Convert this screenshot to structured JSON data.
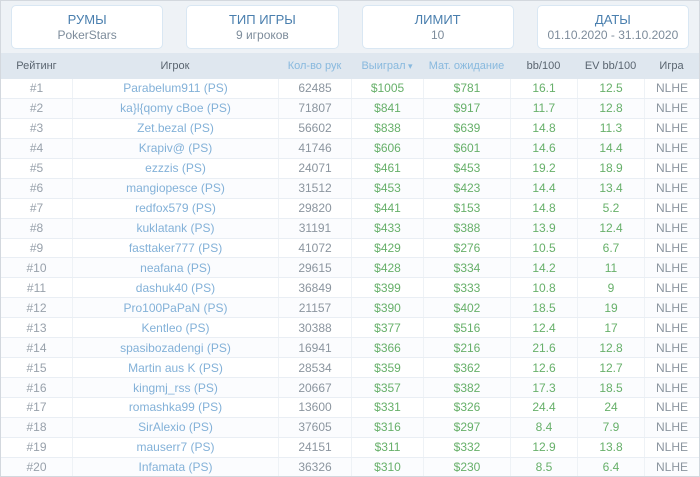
{
  "filters": [
    {
      "label": "РУМЫ",
      "value": "PokerStars"
    },
    {
      "label": "ТИП ИГРЫ",
      "value": "9 игроков"
    },
    {
      "label": "ЛИМИТ",
      "value": "10"
    },
    {
      "label": "ДАТЫ",
      "value": "01.10.2020 - 31.10.2020"
    }
  ],
  "table": {
    "sort_icon": "▾",
    "columns": [
      {
        "label": "Рейтинг",
        "sortable": false,
        "sorted": false
      },
      {
        "label": "Игрок",
        "sortable": false,
        "sorted": false
      },
      {
        "label": "Кол-во рук",
        "sortable": true,
        "sorted": false
      },
      {
        "label": "Выиграл",
        "sortable": true,
        "sorted": true
      },
      {
        "label": "Мат. ожидание",
        "sortable": true,
        "sorted": false
      },
      {
        "label": "bb/100",
        "sortable": false,
        "sorted": false
      },
      {
        "label": "EV bb/100",
        "sortable": false,
        "sorted": false
      },
      {
        "label": "Игра",
        "sortable": false,
        "sorted": false
      }
    ],
    "rows": [
      {
        "rank": "#1",
        "player": "Parabelum911 (PS)",
        "hands": "62485",
        "won": "$1005",
        "expectation": "$781",
        "bb100": "16.1",
        "ev_bb100": "12.5",
        "game": "NLHE"
      },
      {
        "rank": "#2",
        "player": "ka}l{qomy cBoe (PS)",
        "hands": "71807",
        "won": "$841",
        "expectation": "$917",
        "bb100": "11.7",
        "ev_bb100": "12.8",
        "game": "NLHE"
      },
      {
        "rank": "#3",
        "player": "Zet.bezal (PS)",
        "hands": "56602",
        "won": "$838",
        "expectation": "$639",
        "bb100": "14.8",
        "ev_bb100": "11.3",
        "game": "NLHE"
      },
      {
        "rank": "#4",
        "player": "Krapiv@ (PS)",
        "hands": "41746",
        "won": "$606",
        "expectation": "$601",
        "bb100": "14.6",
        "ev_bb100": "14.4",
        "game": "NLHE"
      },
      {
        "rank": "#5",
        "player": "ezzzis (PS)",
        "hands": "24071",
        "won": "$461",
        "expectation": "$453",
        "bb100": "19.2",
        "ev_bb100": "18.9",
        "game": "NLHE"
      },
      {
        "rank": "#6",
        "player": "mangiopesce (PS)",
        "hands": "31512",
        "won": "$453",
        "expectation": "$423",
        "bb100": "14.4",
        "ev_bb100": "13.4",
        "game": "NLHE"
      },
      {
        "rank": "#7",
        "player": "redfox579 (PS)",
        "hands": "29820",
        "won": "$441",
        "expectation": "$153",
        "bb100": "14.8",
        "ev_bb100": "5.2",
        "game": "NLHE"
      },
      {
        "rank": "#8",
        "player": "kuklatank (PS)",
        "hands": "31191",
        "won": "$433",
        "expectation": "$388",
        "bb100": "13.9",
        "ev_bb100": "12.4",
        "game": "NLHE"
      },
      {
        "rank": "#9",
        "player": "fasttaker777 (PS)",
        "hands": "41072",
        "won": "$429",
        "expectation": "$276",
        "bb100": "10.5",
        "ev_bb100": "6.7",
        "game": "NLHE"
      },
      {
        "rank": "#10",
        "player": "neafana (PS)",
        "hands": "29615",
        "won": "$428",
        "expectation": "$334",
        "bb100": "14.2",
        "ev_bb100": "11",
        "game": "NLHE"
      },
      {
        "rank": "#11",
        "player": "dashuk40 (PS)",
        "hands": "36849",
        "won": "$399",
        "expectation": "$333",
        "bb100": "10.8",
        "ev_bb100": "9",
        "game": "NLHE"
      },
      {
        "rank": "#12",
        "player": "Pro100PaPaN (PS)",
        "hands": "21157",
        "won": "$390",
        "expectation": "$402",
        "bb100": "18.5",
        "ev_bb100": "19",
        "game": "NLHE"
      },
      {
        "rank": "#13",
        "player": "Kentleo (PS)",
        "hands": "30388",
        "won": "$377",
        "expectation": "$516",
        "bb100": "12.4",
        "ev_bb100": "17",
        "game": "NLHE"
      },
      {
        "rank": "#14",
        "player": "spasibozadengi (PS)",
        "hands": "16941",
        "won": "$366",
        "expectation": "$216",
        "bb100": "21.6",
        "ev_bb100": "12.8",
        "game": "NLHE"
      },
      {
        "rank": "#15",
        "player": "Martin aus K (PS)",
        "hands": "28534",
        "won": "$359",
        "expectation": "$362",
        "bb100": "12.6",
        "ev_bb100": "12.7",
        "game": "NLHE"
      },
      {
        "rank": "#16",
        "player": "kingmj_rss (PS)",
        "hands": "20667",
        "won": "$357",
        "expectation": "$382",
        "bb100": "17.3",
        "ev_bb100": "18.5",
        "game": "NLHE"
      },
      {
        "rank": "#17",
        "player": "romashka99 (PS)",
        "hands": "13600",
        "won": "$331",
        "expectation": "$326",
        "bb100": "24.4",
        "ev_bb100": "24",
        "game": "NLHE"
      },
      {
        "rank": "#18",
        "player": "SirAlexio (PS)",
        "hands": "37605",
        "won": "$316",
        "expectation": "$297",
        "bb100": "8.4",
        "ev_bb100": "7.9",
        "game": "NLHE"
      },
      {
        "rank": "#19",
        "player": "mauserr7 (PS)",
        "hands": "24151",
        "won": "$311",
        "expectation": "$332",
        "bb100": "12.9",
        "ev_bb100": "13.8",
        "game": "NLHE"
      },
      {
        "rank": "#20",
        "player": "Infamata (PS)",
        "hands": "36326",
        "won": "$310",
        "expectation": "$230",
        "bb100": "8.5",
        "ev_bb100": "6.4",
        "game": "NLHE"
      }
    ]
  },
  "colors": {
    "accent_blue": "#4a7fae",
    "link_blue": "#83b1d8",
    "header_bg": "#dfe7ef",
    "positive_green": "#67b06a",
    "muted_gray": "#8b959f"
  }
}
